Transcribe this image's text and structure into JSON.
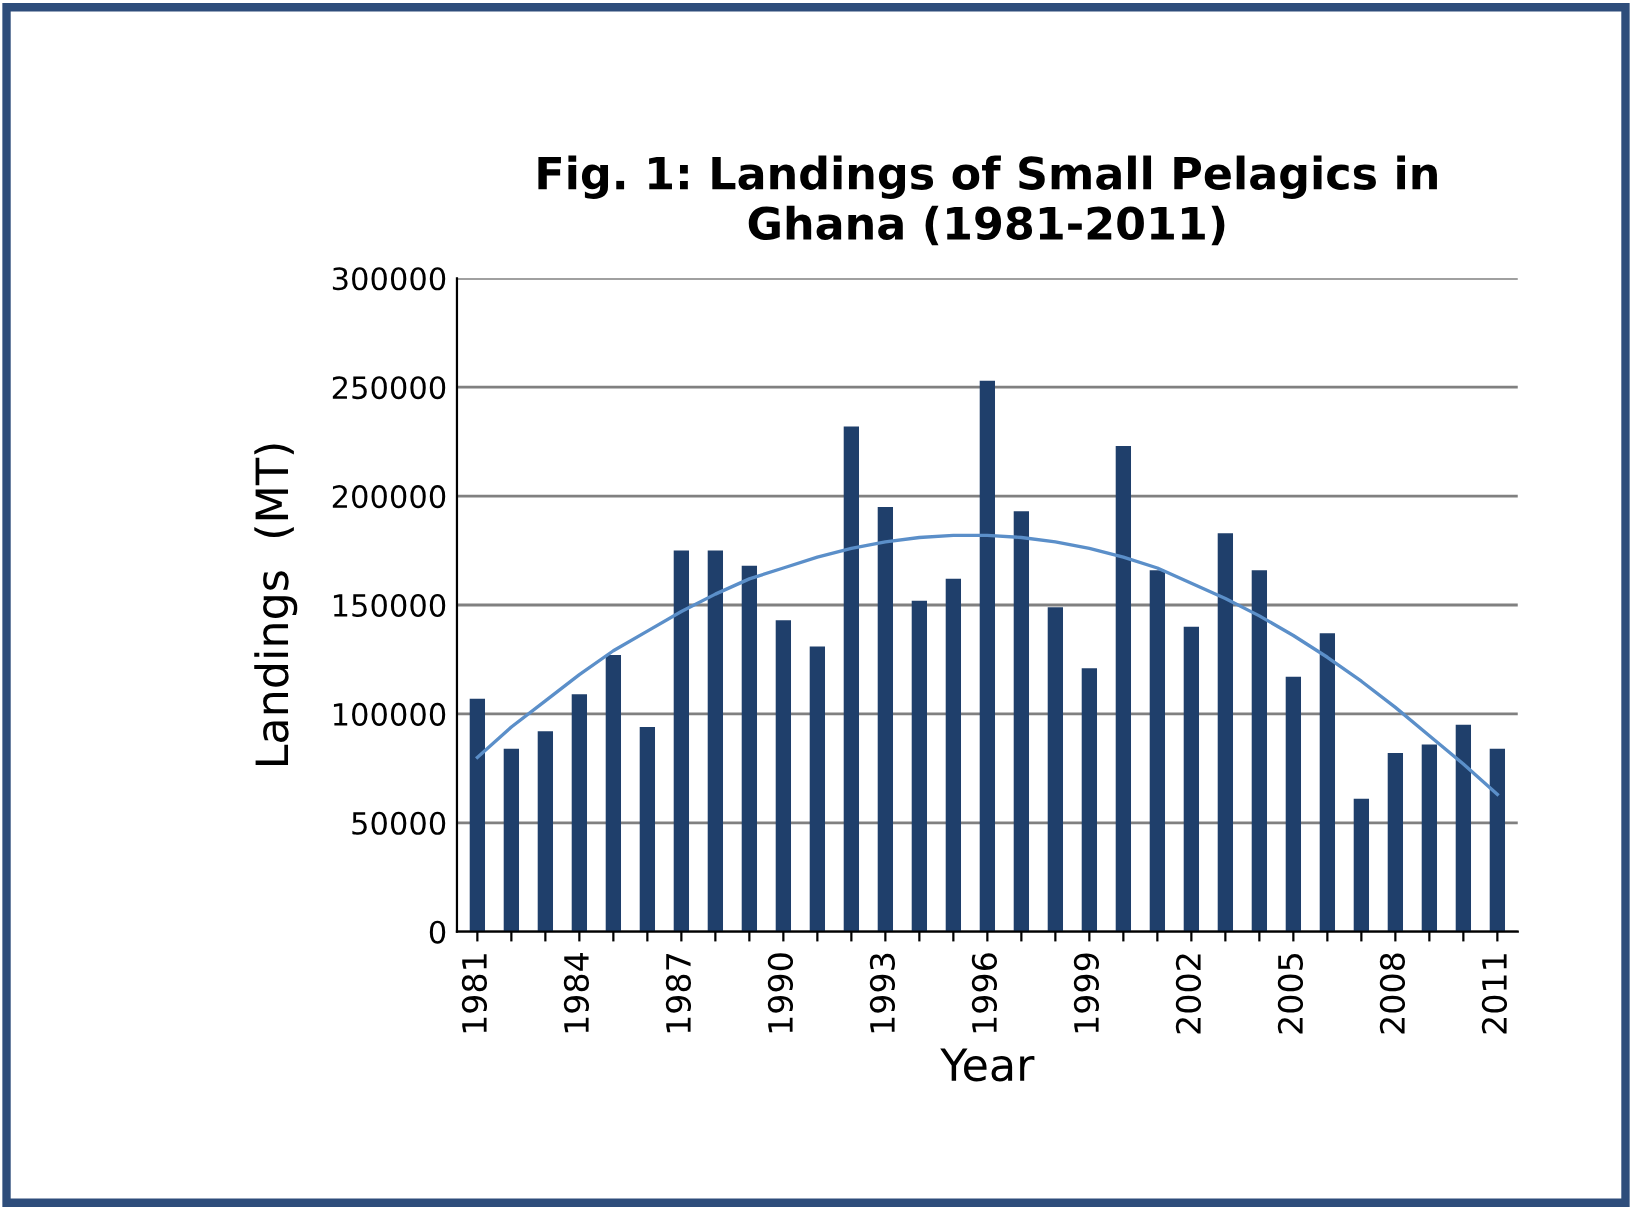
{
  "chart_data": {
    "type": "bar",
    "title": "Fig. 1: Landings of Small Pelagics in\nGhana (1981-2011)",
    "xlabel": "Year",
    "ylabel": "Landings  (MT)",
    "categories": [
      "1981",
      null,
      null,
      "1984",
      null,
      null,
      "1987",
      null,
      null,
      "1990",
      null,
      null,
      "1993",
      null,
      null,
      "1996",
      null,
      null,
      "1999",
      null,
      null,
      "2002",
      null,
      null,
      "2005",
      null,
      null,
      "2008",
      null,
      null,
      "2011"
    ],
    "series": [
      {
        "color": "#1f3f6b",
        "values": [
          107000,
          84000,
          92000,
          109000,
          127000,
          94000,
          175000,
          175000,
          168000,
          143000,
          131000,
          232000,
          195000,
          152000,
          162000,
          253000,
          193000,
          149000,
          121000,
          223000,
          166000,
          140000,
          183000,
          166000,
          117000,
          137000,
          61000,
          82000,
          86000,
          95000,
          84000
        ]
      },
      {
        "type": "line",
        "color": "#5b8fc9",
        "values": [
          80000,
          94000,
          106000,
          118000,
          129000,
          138000,
          147000,
          155000,
          162000,
          167000,
          172000,
          176000,
          179000,
          181000,
          182000,
          182000,
          181000,
          179000,
          176000,
          172000,
          167000,
          160000,
          153000,
          145000,
          136000,
          126000,
          115000,
          103000,
          90000,
          77000,
          63000
        ]
      }
    ],
    "ylim": [
      0,
      300000
    ],
    "yticks": [
      0,
      50000,
      100000,
      150000,
      200000,
      250000,
      300000
    ],
    "grid": "y",
    "legend": false
  }
}
